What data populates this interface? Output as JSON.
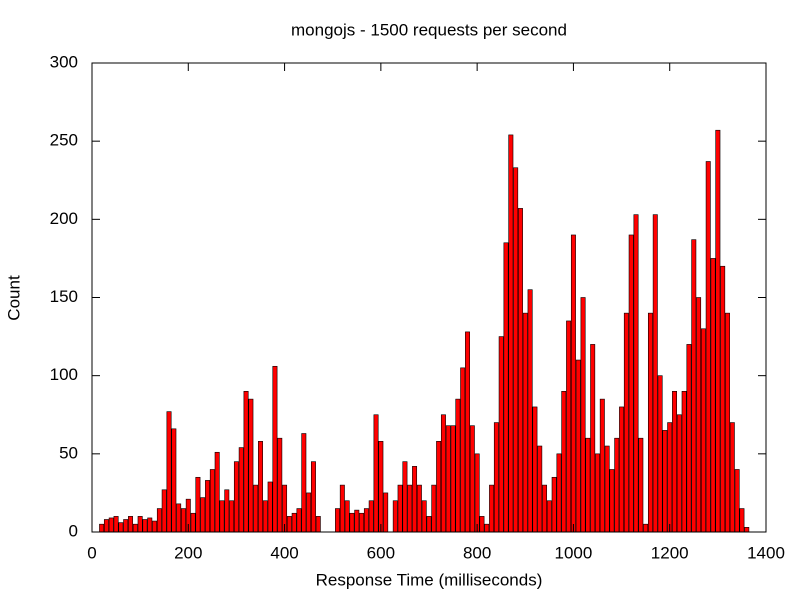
{
  "chart_data": {
    "type": "bar",
    "title": "mongojs - 1500 requests per second",
    "x_label": "Response Time (milliseconds)",
    "y_label": "Count",
    "color": "#ff0000",
    "x": [
      20,
      30,
      40,
      50,
      60,
      70,
      80,
      90,
      100,
      110,
      120,
      130,
      140,
      150,
      160,
      170,
      180,
      190,
      200,
      210,
      220,
      230,
      240,
      250,
      260,
      270,
      280,
      290,
      300,
      310,
      320,
      330,
      340,
      350,
      360,
      370,
      380,
      390,
      400,
      410,
      420,
      430,
      440,
      450,
      460,
      470,
      480,
      490,
      500,
      510,
      520,
      530,
      540,
      550,
      560,
      570,
      580,
      590,
      600,
      610,
      620,
      630,
      640,
      650,
      660,
      670,
      680,
      690,
      700,
      710,
      720,
      730,
      740,
      750,
      760,
      770,
      780,
      790,
      800,
      810,
      820,
      830,
      840,
      850,
      860,
      870,
      880,
      890,
      900,
      910,
      920,
      930,
      940,
      950,
      960,
      970,
      980,
      990,
      1000,
      1010,
      1020,
      1030,
      1040,
      1050,
      1060,
      1070,
      1080,
      1090,
      1100,
      1110,
      1120,
      1130,
      1140,
      1150,
      1160,
      1170,
      1180,
      1190,
      1200,
      1210,
      1220,
      1230,
      1240,
      1250,
      1260,
      1270,
      1280,
      1290,
      1300,
      1310,
      1320,
      1330,
      1340,
      1350,
      1360
    ],
    "values": [
      5,
      8,
      9,
      10,
      6,
      8,
      10,
      5,
      10,
      8,
      9,
      7,
      15,
      27,
      77,
      66,
      18,
      15,
      21,
      12,
      35,
      22,
      33,
      40,
      51,
      20,
      27,
      20,
      45,
      54,
      90,
      85,
      30,
      58,
      20,
      32,
      106,
      60,
      30,
      10,
      12,
      15,
      63,
      25,
      45,
      10,
      0,
      0,
      0,
      15,
      30,
      20,
      12,
      14,
      12,
      15,
      20,
      75,
      58,
      25,
      0,
      20,
      30,
      45,
      30,
      42,
      30,
      20,
      10,
      30,
      58,
      75,
      68,
      68,
      85,
      105,
      128,
      68,
      50,
      10,
      5,
      30,
      70,
      125,
      185,
      254,
      233,
      207,
      140,
      155,
      80,
      55,
      30,
      20,
      35,
      50,
      90,
      135,
      190,
      110,
      150,
      60,
      120,
      50,
      85,
      55,
      40,
      60,
      80,
      140,
      190,
      203,
      60,
      5,
      140,
      203,
      100,
      65,
      70,
      90,
      75,
      90,
      120,
      187,
      150,
      130,
      237,
      175,
      257,
      170,
      140,
      70,
      40,
      15,
      3
    ],
    "xlim": [
      0,
      1400
    ],
    "xticks": [
      0,
      200,
      400,
      600,
      800,
      1000,
      1200,
      1400
    ],
    "ylim": [
      0,
      300
    ],
    "yticks": [
      0,
      50,
      100,
      150,
      200,
      250,
      300
    ]
  }
}
